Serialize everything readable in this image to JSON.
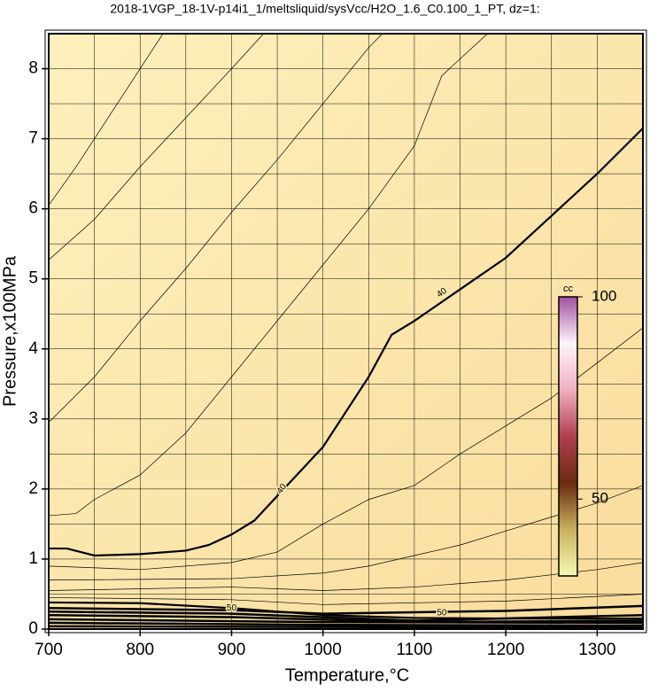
{
  "chart_data": {
    "type": "contour",
    "title": "2018-1VGP_18-1V-p14i1_1/meltsliquid/sysVcc/H2O_1.6_C0.100_1_PT, dz=1:",
    "x_label": "Temperature,°C",
    "y_label": "Pressure,x100MPa",
    "xlim": [
      700,
      1350
    ],
    "ylim": [
      0,
      8.5
    ],
    "xticks": [
      700,
      800,
      900,
      1000,
      1100,
      1200,
      1300
    ],
    "yticks": [
      0,
      1,
      2,
      3,
      4,
      5,
      6,
      7,
      8
    ],
    "xgrid": [
      750,
      800,
      850,
      900,
      950,
      1000,
      1050,
      1100,
      1150,
      1200,
      1250,
      1300
    ],
    "ygrid": [
      0.5,
      1,
      1.5,
      2,
      2.5,
      3,
      3.5,
      4,
      4.5,
      5,
      5.5,
      6,
      6.5,
      7,
      7.5,
      8
    ],
    "background": [
      "#fdf0bc",
      "#f9dc9c"
    ],
    "line_color": "#000000",
    "contours": [
      {
        "level": 40,
        "bold": true,
        "x": [
          700,
          720,
          750,
          800,
          850,
          875,
          900,
          925,
          950,
          975,
          1000,
          1025,
          1050,
          1075,
          1100,
          1150,
          1200,
          1250,
          1300,
          1350
        ],
        "y": [
          1.15,
          1.15,
          1.05,
          1.07,
          1.12,
          1.2,
          1.35,
          1.55,
          1.9,
          2.25,
          2.6,
          3.1,
          3.6,
          4.2,
          4.4,
          4.85,
          5.3,
          5.9,
          6.5,
          7.15
        ]
      },
      {
        "level": 50,
        "bold": true,
        "x": [
          700,
          800,
          900,
          1000,
          1100,
          1200,
          1350
        ],
        "y": [
          0.38,
          0.37,
          0.3,
          0.2,
          0.16,
          0.15,
          0.15
        ]
      },
      {
        "x": [
          700,
          730,
          760,
          790,
          810,
          825
        ],
        "y": [
          6.05,
          6.6,
          7.2,
          7.8,
          8.2,
          8.5
        ]
      },
      {
        "x": [
          700,
          750,
          800,
          850,
          900,
          935
        ],
        "y": [
          5.27,
          5.85,
          6.6,
          7.3,
          8.0,
          8.5
        ]
      },
      {
        "x": [
          700,
          750,
          800,
          850,
          900,
          950,
          1000,
          1050,
          1065
        ],
        "y": [
          2.95,
          3.6,
          4.4,
          5.15,
          5.95,
          6.7,
          7.5,
          8.3,
          8.5
        ]
      },
      {
        "x": [
          700,
          730,
          750,
          800,
          850,
          900,
          950,
          1000,
          1050,
          1100,
          1130,
          1180
        ],
        "y": [
          1.62,
          1.65,
          1.85,
          2.2,
          2.8,
          3.6,
          4.4,
          5.2,
          6.0,
          6.9,
          7.9,
          8.5
        ]
      },
      {
        "x": [
          700,
          800,
          900,
          950,
          1000,
          1050,
          1100,
          1150,
          1200,
          1250,
          1300,
          1350
        ],
        "y": [
          0.9,
          0.85,
          0.95,
          1.1,
          1.5,
          1.85,
          2.05,
          2.5,
          2.9,
          3.3,
          3.8,
          4.3
        ]
      },
      {
        "x": [
          700,
          900,
          1000,
          1050,
          1100,
          1150,
          1200,
          1250,
          1300,
          1350
        ],
        "y": [
          0.7,
          0.72,
          0.8,
          0.9,
          1.05,
          1.2,
          1.4,
          1.6,
          1.8,
          2.05
        ]
      },
      {
        "x": [
          700,
          900,
          1000,
          1100,
          1200,
          1300,
          1350
        ],
        "y": [
          0.55,
          0.6,
          0.55,
          0.6,
          0.7,
          0.85,
          0.95
        ]
      },
      {
        "x": [
          700,
          900,
          1000,
          1200,
          1350
        ],
        "y": [
          0.45,
          0.42,
          0.35,
          0.4,
          0.5
        ]
      },
      {
        "x": [
          700,
          900,
          1000,
          1200,
          1350
        ],
        "y": [
          0.3,
          0.27,
          0.22,
          0.26,
          0.33
        ]
      },
      {
        "x": [
          700,
          900,
          1100,
          1350
        ],
        "y": [
          0.25,
          0.22,
          0.12,
          0.2
        ]
      },
      {
        "x": [
          700,
          900,
          1100,
          1350
        ],
        "y": [
          0.2,
          0.17,
          0.1,
          0.12
        ]
      },
      {
        "x": [
          700,
          1000,
          1350
        ],
        "y": [
          0.14,
          0.1,
          0.09
        ]
      },
      {
        "x": [
          700,
          1000,
          1350
        ],
        "y": [
          0.09,
          0.06,
          0.05
        ]
      },
      {
        "x": [
          700,
          1000,
          1350
        ],
        "y": [
          0.04,
          0.03,
          0.02
        ]
      }
    ],
    "colorbar": {
      "label": "cc",
      "lim": [
        31,
        100
      ],
      "ticks": [
        50,
        100
      ],
      "colors": [
        "#f6f8b4",
        "#c8b060",
        "#6a2a10",
        "#b04050",
        "#f0b0c0",
        "#fff4fa",
        "#a050a0"
      ]
    }
  }
}
